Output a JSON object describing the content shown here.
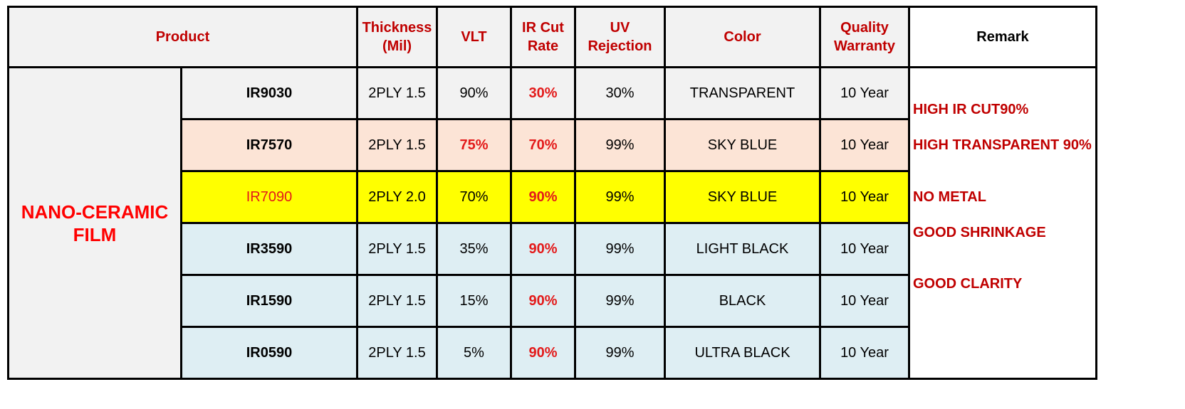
{
  "headers": {
    "product": "Product",
    "thickness": "Thickness (Mil)",
    "vlt": "VLT",
    "ir_cut": "IR Cut Rate",
    "uv": "UV Rejection",
    "color": "Color",
    "warranty": "Quality Warranty",
    "remark": "Remark"
  },
  "category": "NANO-CERAMIC FILM",
  "rows": [
    {
      "model": "IR9030",
      "thickness": "2PLY 1.5",
      "vlt": "90%",
      "ir_cut": "30%",
      "uv": "30%",
      "color": "TRANSPARENT",
      "warranty": "10 Year"
    },
    {
      "model": "IR7570",
      "thickness": "2PLY 1.5",
      "vlt": "75%",
      "ir_cut": "70%",
      "uv": "99%",
      "color": "SKY BLUE",
      "warranty": "10 Year"
    },
    {
      "model": "IR7090",
      "thickness": "2PLY 2.0",
      "vlt": "70%",
      "ir_cut": "90%",
      "uv": "99%",
      "color": "SKY BLUE",
      "warranty": "10 Year"
    },
    {
      "model": "IR3590",
      "thickness": "2PLY 1.5",
      "vlt": "35%",
      "ir_cut": "90%",
      "uv": "99%",
      "color": "LIGHT BLACK",
      "warranty": "10 Year"
    },
    {
      "model": "IR1590",
      "thickness": "2PLY 1.5",
      "vlt": "15%",
      "ir_cut": "90%",
      "uv": "99%",
      "color": "BLACK",
      "warranty": "10 Year"
    },
    {
      "model": "IR0590",
      "thickness": "2PLY 1.5",
      "vlt": "5%",
      "ir_cut": "90%",
      "uv": "99%",
      "color": "ULTRA BLACK",
      "warranty": "10 Year"
    }
  ],
  "remarks": [
    "HIGH IR CUT90%",
    "HIGH TRANSPARENT 90%",
    "NO METAL",
    "GOOD SHRINKAGE",
    "GOOD CLARITY"
  ],
  "colors": {
    "header_text": "#c00000",
    "highlight_text": "#e31a1a",
    "category_text": "#ff0000",
    "row_gray": "#f2f2f2",
    "row_peach": "#fce4d6",
    "row_yellow": "#ffff00",
    "row_blue": "#deeef3"
  }
}
